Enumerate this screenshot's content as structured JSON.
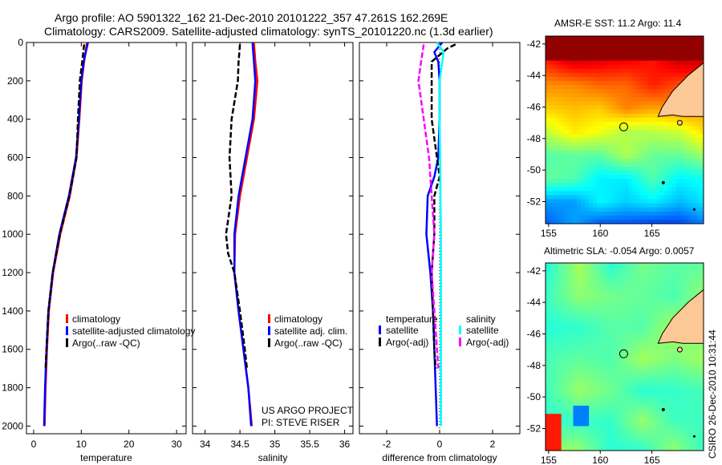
{
  "title": {
    "line1": "Argo profile: AO 5901322_162 21-Dec-2010 20101222_357 47.261S 162.269E",
    "line2": "Climatology: CARS2009. Satellite-adjusted climatology: synTS_20101220.nc (1.3d earlier)"
  },
  "colors": {
    "climatology": "#ff0000",
    "satellite": "#0000ff",
    "argo": "#000000",
    "sal_satellite": "#00ffff",
    "sal_argo": "#ff00ff"
  },
  "chart_data": [
    {
      "type": "line",
      "xlabel": "temperature",
      "xlim": [
        -1.5,
        32
      ],
      "ylim": [
        0,
        2040
      ],
      "xticks": [
        0,
        10,
        20,
        30
      ],
      "yticks": [
        0,
        200,
        400,
        600,
        800,
        1000,
        1200,
        1400,
        1600,
        1800,
        2000
      ],
      "legend": [
        "climatology",
        "satellite-adjusted climatology",
        "Argo(..raw -QC)"
      ],
      "legend_placement": "lower-right",
      "series": [
        {
          "name": "climatology",
          "color": "#ff0000",
          "depth": [
            0,
            100,
            200,
            400,
            600,
            800,
            1000,
            1200,
            1400,
            1600,
            1800,
            2000
          ],
          "values": [
            11.2,
            10.6,
            10.1,
            9.6,
            9.0,
            7.6,
            5.6,
            4.1,
            3.2,
            2.8,
            2.5,
            2.3
          ]
        },
        {
          "name": "satellite",
          "color": "#0000ff",
          "depth": [
            0,
            100,
            200,
            400,
            600,
            800,
            1000,
            1200,
            1400,
            1600,
            1800,
            2000
          ],
          "values": [
            11.4,
            10.5,
            10.0,
            9.5,
            8.9,
            7.4,
            5.4,
            4.0,
            3.1,
            2.7,
            2.4,
            2.2
          ]
        },
        {
          "name": "argo",
          "color": "#000000",
          "dash": true,
          "depth": [
            10,
            100,
            200,
            400,
            600,
            800,
            1000,
            1200,
            1400,
            1600,
            1700
          ],
          "values": [
            10.6,
            10.2,
            9.7,
            9.3,
            9.0,
            7.5,
            5.5,
            4.0,
            3.1,
            2.7,
            2.5
          ]
        }
      ]
    },
    {
      "type": "line",
      "xlabel": "salinity",
      "xlim": [
        33.82,
        36.12
      ],
      "ylim": [
        0,
        2040
      ],
      "xticks": [
        34,
        34.5,
        35,
        35.5,
        36
      ],
      "legend": [
        "climatology",
        "satellite adj. clim.",
        "Argo(..raw -QC)"
      ],
      "legend_placement": "lower-right",
      "annotation": [
        "US ARGO PROJECT",
        "PI: STEVE RISER"
      ],
      "series": [
        {
          "name": "climatology",
          "color": "#ff0000",
          "depth": [
            0,
            100,
            200,
            400,
            600,
            800,
            1000,
            1200,
            1400,
            1600,
            1800,
            2000
          ],
          "values": [
            34.7,
            34.72,
            34.75,
            34.7,
            34.6,
            34.5,
            34.43,
            34.42,
            34.48,
            34.55,
            34.62,
            34.67
          ]
        },
        {
          "name": "satellite",
          "color": "#0000ff",
          "depth": [
            0,
            100,
            200,
            400,
            600,
            800,
            1000,
            1200,
            1400,
            1600,
            1800,
            2000
          ],
          "values": [
            34.68,
            34.7,
            34.72,
            34.68,
            34.58,
            34.48,
            34.42,
            34.42,
            34.48,
            34.55,
            34.62,
            34.66
          ]
        },
        {
          "name": "argo",
          "color": "#000000",
          "dash": true,
          "depth": [
            10,
            100,
            200,
            400,
            600,
            800,
            1000,
            1100,
            1200,
            1400,
            1600,
            1700
          ],
          "values": [
            34.5,
            34.48,
            34.47,
            34.38,
            34.35,
            34.38,
            34.3,
            34.33,
            34.42,
            34.5,
            34.57,
            34.6
          ]
        }
      ]
    },
    {
      "type": "line",
      "xlabel": "difference from climatology",
      "xlim": [
        -3.03,
        3.03
      ],
      "ylim": [
        0,
        2040
      ],
      "xticks": [
        -2,
        0,
        2
      ],
      "legend_groups": [
        {
          "title": "temperature",
          "items": [
            "satellite",
            "Argo(-adj)"
          ]
        },
        {
          "title": "salinity",
          "items": [
            "satellite",
            "Argo(-adj)"
          ]
        }
      ],
      "series": [
        {
          "name": "temperature satellite",
          "color": "#0000ff",
          "depth": [
            0,
            50,
            100,
            200,
            400,
            600,
            700,
            800,
            1000,
            1200,
            1400,
            1600,
            1800,
            2000
          ],
          "values": [
            0.1,
            -0.2,
            -0.05,
            0,
            0,
            -0.05,
            -0.2,
            -0.45,
            -0.5,
            -0.35,
            -0.25,
            -0.2,
            -0.15,
            -0.1
          ]
        },
        {
          "name": "temperature argo",
          "color": "#000000",
          "dash": true,
          "depth": [
            10,
            30,
            100,
            400,
            700,
            800,
            1000,
            1200,
            1400,
            1600,
            1700
          ],
          "values": [
            0.6,
            0.3,
            -0.3,
            -0.3,
            0,
            -0.2,
            -0.2,
            -0.3,
            -0.25,
            -0.2,
            -0.15
          ]
        },
        {
          "name": "salinity satellite",
          "color": "#00ffff",
          "depth": [
            0,
            50,
            100,
            200,
            400,
            1000,
            2000
          ],
          "values": [
            -0.1,
            0.15,
            0.1,
            0,
            0,
            0.05,
            0.05
          ]
        },
        {
          "name": "salinity argo",
          "color": "#ff00ff",
          "dash": true,
          "depth": [
            10,
            100,
            200,
            400,
            600,
            800,
            1000,
            1200,
            1400,
            1600,
            1700
          ],
          "values": [
            -0.6,
            -0.7,
            -0.8,
            -0.6,
            -0.4,
            -0.3,
            -0.2,
            -0.3,
            -0.2,
            -0.1,
            -0.05
          ]
        }
      ]
    },
    {
      "type": "heatmap",
      "title": "AMSR-E SST: 11.2 Argo: 11.4",
      "xlim": [
        154.7,
        170
      ],
      "ylim": [
        -53.4,
        -41.5
      ],
      "xticks": [
        155,
        160,
        165
      ],
      "yticks": [
        -42,
        -44,
        -46,
        -48,
        -50,
        -52
      ],
      "marker": {
        "lon": 162.269,
        "lat": -47.261
      }
    },
    {
      "type": "heatmap",
      "title": "Altimetric SLA: -0.054 Argo: 0.0057",
      "xlim": [
        154.7,
        170
      ],
      "ylim": [
        -53.4,
        -41.5
      ],
      "xticks": [
        155,
        160,
        165
      ],
      "yticks": [
        -42,
        -44,
        -46,
        -48,
        -50,
        -52
      ],
      "marker": {
        "lon": 162.269,
        "lat": -47.261
      }
    }
  ],
  "footer": "CSIRO 26-Dec-2010 10:31:44"
}
